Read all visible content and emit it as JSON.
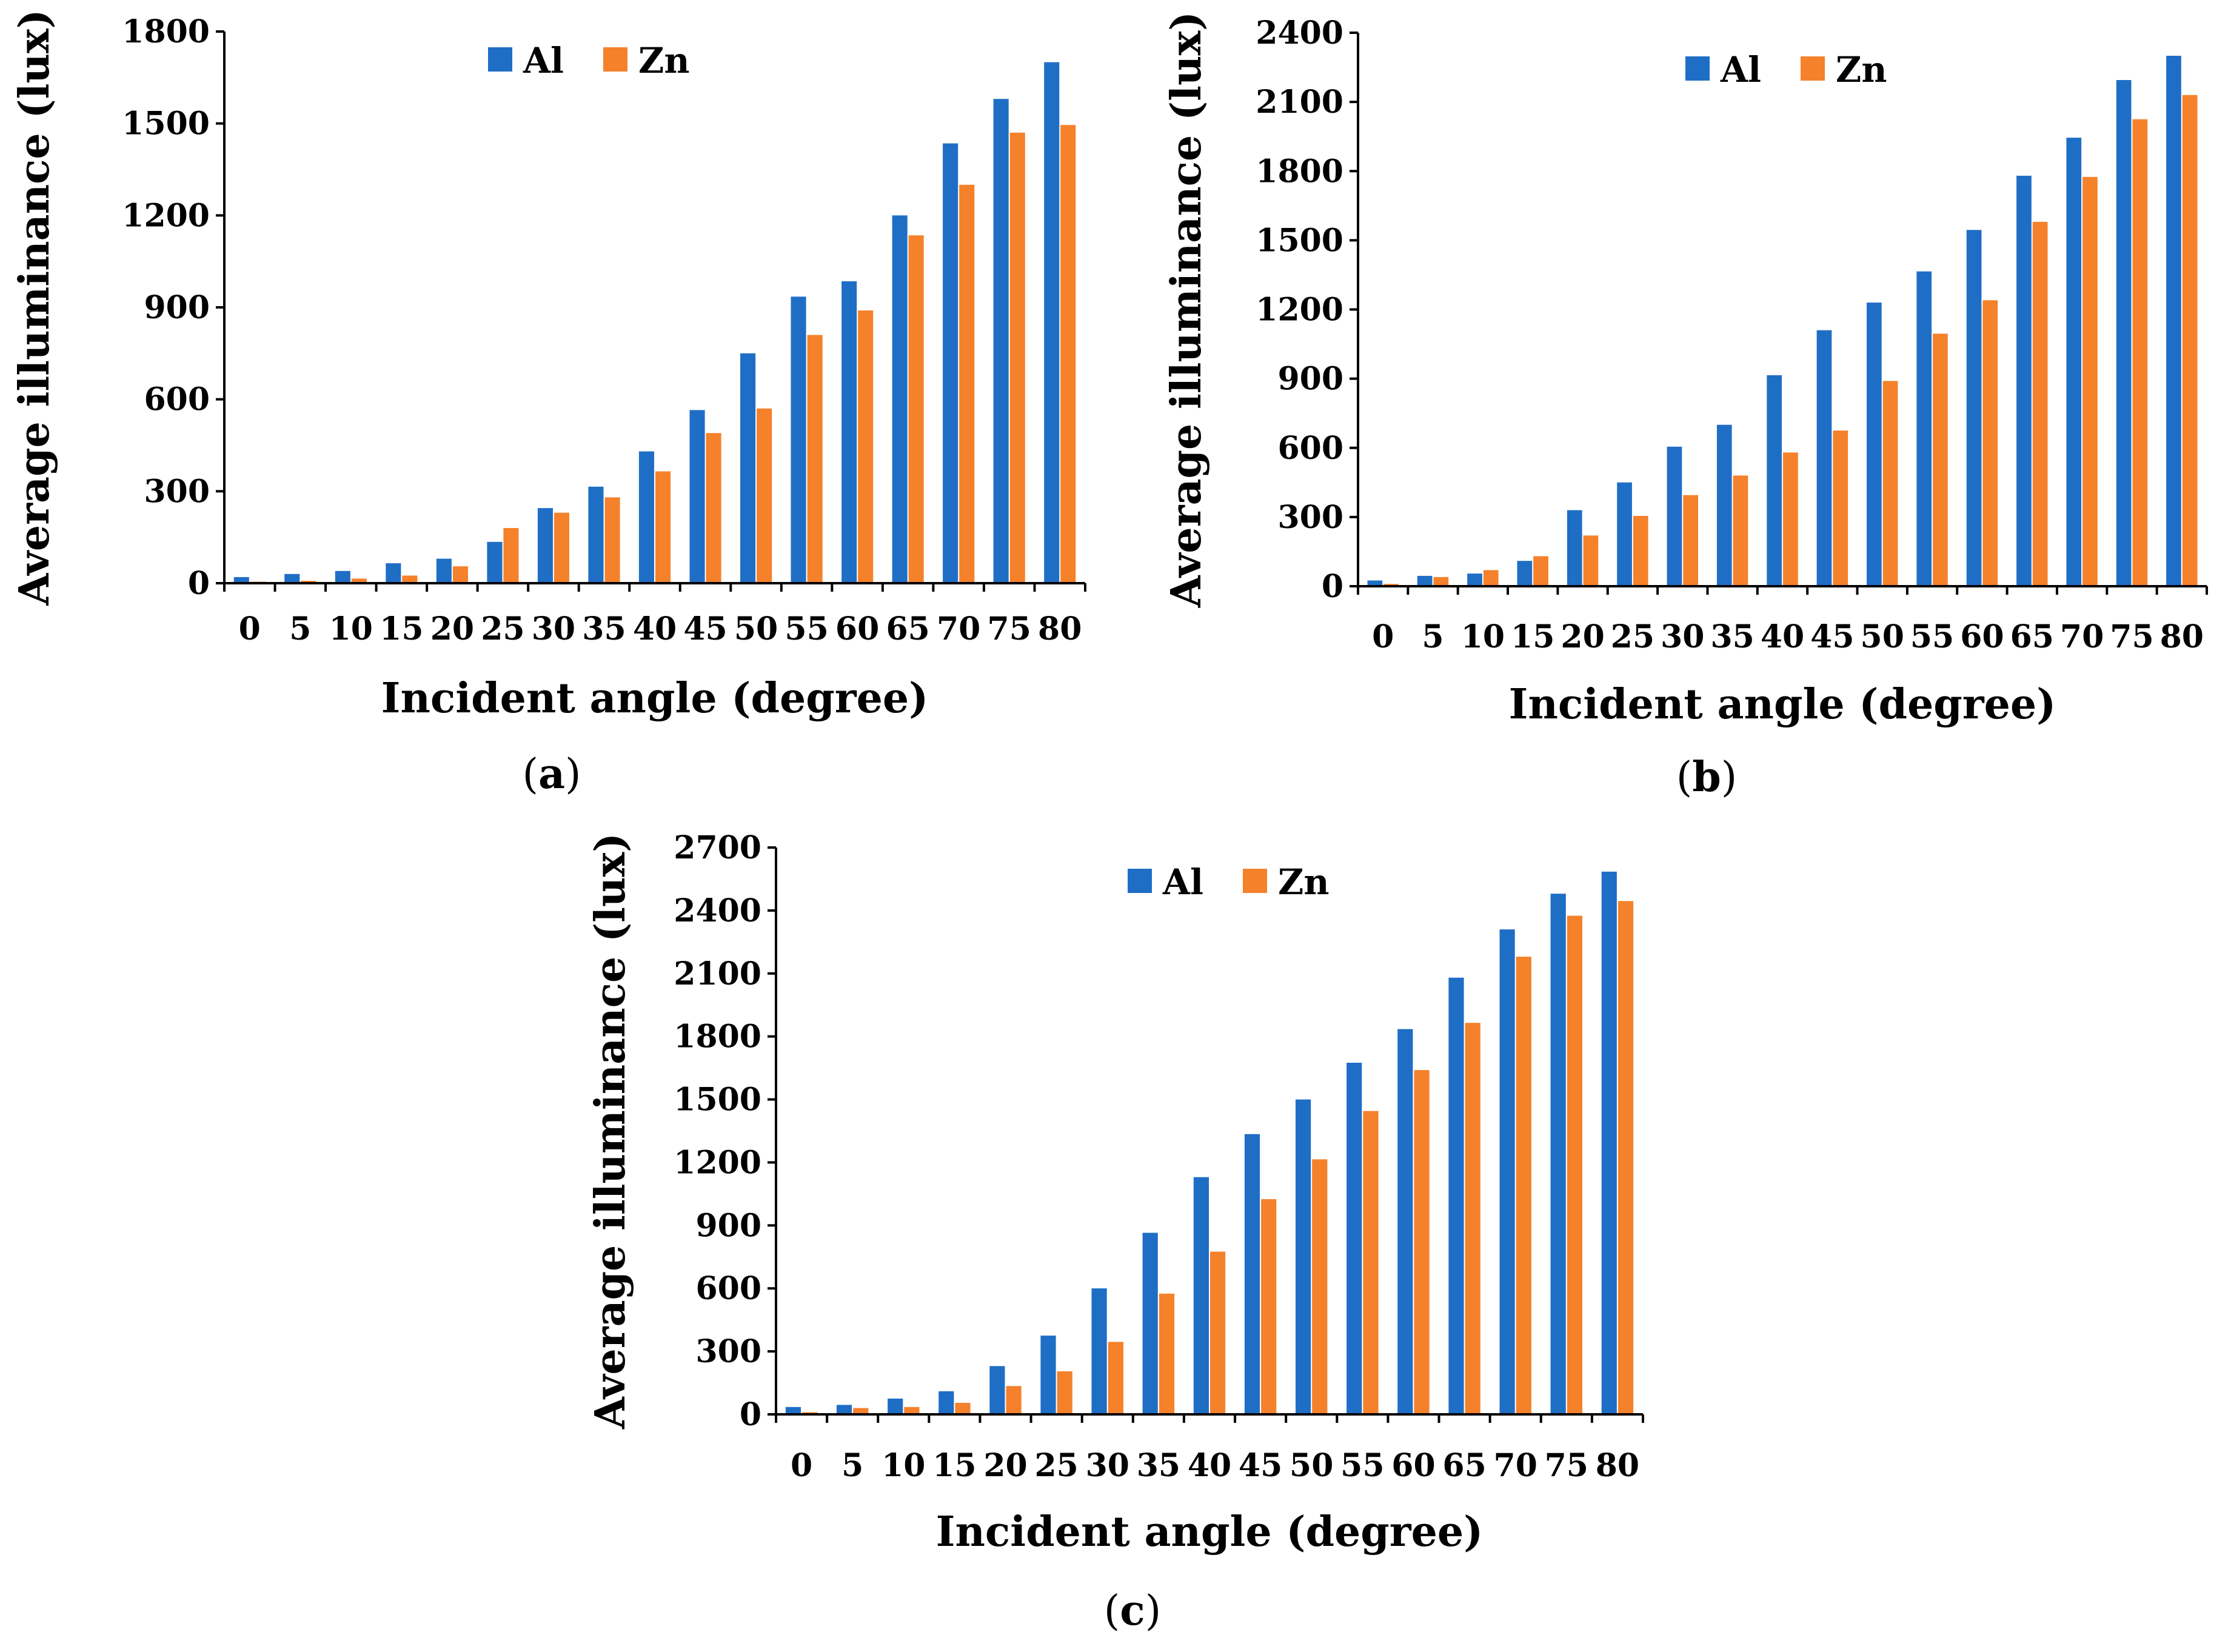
{
  "colors": {
    "al": "#1f6ec6",
    "zn": "#f5812a",
    "axis": "#000000"
  },
  "chart_data": [
    {
      "id": "a",
      "type": "bar",
      "panel_label": "a",
      "xlabel": "Incident angle (degree)",
      "ylabel": "Average illuminance (lux)",
      "categories": [
        "0",
        "5",
        "10",
        "15",
        "20",
        "25",
        "30",
        "35",
        "40",
        "45",
        "50",
        "55",
        "60",
        "65",
        "70",
        "75",
        "80"
      ],
      "ylim": [
        0,
        1800
      ],
      "yticks": [
        "0",
        "300",
        "600",
        "900",
        "1200",
        "1500",
        "1800"
      ],
      "legend_position": "top-center",
      "series": [
        {
          "name": "Al",
          "color_key": "al",
          "values": [
            20,
            30,
            40,
            65,
            80,
            135,
            245,
            315,
            430,
            565,
            750,
            935,
            985,
            1200,
            1435,
            1580,
            1700
          ]
        },
        {
          "name": "Zn",
          "color_key": "zn",
          "values": [
            5,
            8,
            15,
            25,
            55,
            180,
            230,
            280,
            365,
            490,
            570,
            810,
            890,
            1135,
            1300,
            1470,
            1495
          ]
        }
      ]
    },
    {
      "id": "b",
      "type": "bar",
      "panel_label": "b",
      "xlabel": "Incident angle (degree)",
      "ylabel": "Average illuminance (lux)",
      "categories": [
        "0",
        "5",
        "10",
        "15",
        "20",
        "25",
        "30",
        "35",
        "40",
        "45",
        "50",
        "55",
        "60",
        "65",
        "70",
        "75",
        "80"
      ],
      "ylim": [
        0,
        2400
      ],
      "yticks": [
        "0",
        "300",
        "600",
        "900",
        "1200",
        "1500",
        "1800",
        "2100",
        "2400"
      ],
      "legend_position": "top-center",
      "series": [
        {
          "name": "Al",
          "color_key": "al",
          "values": [
            25,
            45,
            55,
            110,
            330,
            450,
            605,
            700,
            915,
            1110,
            1230,
            1365,
            1545,
            1780,
            1945,
            2195,
            2300
          ]
        },
        {
          "name": "Zn",
          "color_key": "zn",
          "values": [
            10,
            40,
            70,
            130,
            220,
            305,
            395,
            480,
            580,
            675,
            890,
            1095,
            1240,
            1580,
            1775,
            2025,
            2130
          ]
        }
      ]
    },
    {
      "id": "c",
      "type": "bar",
      "panel_label": "c",
      "xlabel": "Incident angle (degree)",
      "ylabel": "Average illuminance (lux)",
      "categories": [
        "0",
        "5",
        "10",
        "15",
        "20",
        "25",
        "30",
        "35",
        "40",
        "45",
        "50",
        "55",
        "60",
        "65",
        "70",
        "75",
        "80"
      ],
      "ylim": [
        0,
        2700
      ],
      "yticks": [
        "0",
        "300",
        "600",
        "900",
        "1200",
        "1500",
        "1800",
        "2100",
        "2400",
        "2700"
      ],
      "legend_position": "top-center",
      "series": [
        {
          "name": "Al",
          "color_key": "al",
          "values": [
            35,
            45,
            75,
            110,
            230,
            375,
            600,
            865,
            1130,
            1335,
            1500,
            1675,
            1835,
            2080,
            2310,
            2480,
            2585
          ]
        },
        {
          "name": "Zn",
          "color_key": "zn",
          "values": [
            10,
            30,
            35,
            55,
            135,
            205,
            345,
            575,
            775,
            1025,
            1215,
            1445,
            1640,
            1865,
            2180,
            2375,
            2445
          ]
        }
      ]
    }
  ]
}
